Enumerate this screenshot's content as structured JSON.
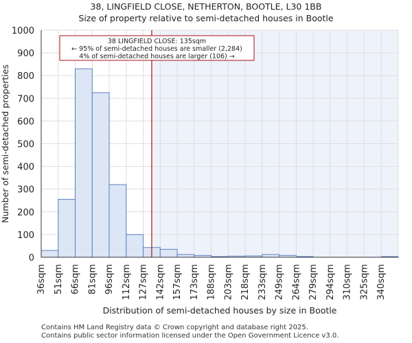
{
  "title": "38, LINGFIELD CLOSE, NETHERTON, BOOTLE, L30 1BB",
  "subtitle": "Size of property relative to semi-detached houses in Bootle",
  "footer": {
    "line1": "Contains HM Land Registry data © Crown copyright and database right 2025.",
    "line2": "Contains public sector information licensed under the Open Government Licence v3.0."
  },
  "colors": {
    "bar_fill": "#dce6f5",
    "bar_stroke": "#5b7fbf",
    "highlight_bg": "#eef2fa",
    "marker": "#aa1111",
    "grid": "#dddddd"
  },
  "chart_data": {
    "type": "bar",
    "title": "38, LINGFIELD CLOSE, NETHERTON, BOOTLE, L30 1BB",
    "xlabel": "Distribution of semi-detached houses by size in Bootle",
    "ylabel": "Number of semi-detached properties",
    "ylim": [
      0,
      1000
    ],
    "yticks": [
      0,
      100,
      200,
      300,
      400,
      500,
      600,
      700,
      800,
      900,
      1000
    ],
    "grid": true,
    "categories": [
      "36sqm",
      "51sqm",
      "66sqm",
      "81sqm",
      "96sqm",
      "112sqm",
      "127sqm",
      "142sqm",
      "157sqm",
      "173sqm",
      "188sqm",
      "203sqm",
      "218sqm",
      "233sqm",
      "249sqm",
      "264sqm",
      "279sqm",
      "294sqm",
      "310sqm",
      "325sqm",
      "340sqm"
    ],
    "values": [
      30,
      255,
      830,
      725,
      320,
      100,
      43,
      35,
      12,
      8,
      3,
      5,
      6,
      12,
      8,
      3,
      0,
      0,
      0,
      0,
      3
    ],
    "property_marker": {
      "value_sqm": 135,
      "bar_index": 6.5
    },
    "annotation": {
      "line1": "38 LINGFIELD CLOSE: 135sqm",
      "line2": "← 95% of semi-detached houses are smaller (2,284)",
      "line3": "4% of semi-detached houses are larger (106) →"
    }
  }
}
